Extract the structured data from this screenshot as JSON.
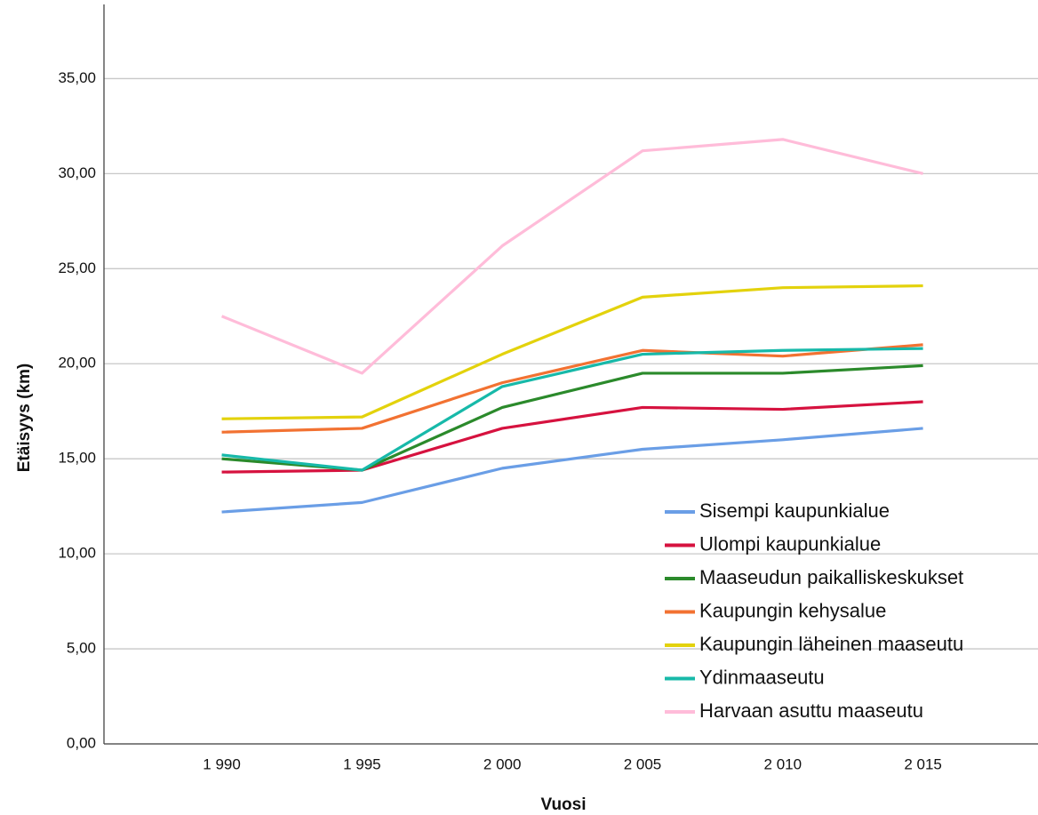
{
  "chart_data": {
    "type": "line",
    "x_label": "Vuosi",
    "y_label": "Etäisyys (km)",
    "x": [
      1990,
      1995,
      2000,
      2005,
      2010,
      2015
    ],
    "xlim": [
      1985.8,
      2019.1
    ],
    "xticks": [
      {
        "value": 1990,
        "label": "1 990"
      },
      {
        "value": 1995,
        "label": "1 995"
      },
      {
        "value": 2000,
        "label": "2 000"
      },
      {
        "value": 2005,
        "label": "2 005"
      },
      {
        "value": 2010,
        "label": "2 010"
      },
      {
        "value": 2015,
        "label": "2 015"
      }
    ],
    "ylim": [
      0,
      38.9
    ],
    "yticks": [
      {
        "value": 0,
        "label": "0,00"
      },
      {
        "value": 5,
        "label": "5,00"
      },
      {
        "value": 10,
        "label": "10,00"
      },
      {
        "value": 15,
        "label": "15,00"
      },
      {
        "value": 20,
        "label": "20,00"
      },
      {
        "value": 25,
        "label": "25,00"
      },
      {
        "value": 30,
        "label": "30,00"
      },
      {
        "value": 35,
        "label": "35,00"
      }
    ],
    "grid": true,
    "legend": "lower right",
    "series": [
      {
        "name": "Sisempi kaupunkialue",
        "color": "#6a9ee6",
        "values": [
          12.2,
          12.7,
          14.5,
          15.5,
          16.0,
          16.6
        ]
      },
      {
        "name": "Ulompi kaupunkialue",
        "color": "#d6123f",
        "values": [
          14.3,
          14.4,
          16.6,
          17.7,
          17.6,
          18.0
        ]
      },
      {
        "name": "Maaseudun paikalliskeskukset",
        "color": "#2b8a2b",
        "values": [
          15.0,
          14.4,
          17.7,
          19.5,
          19.5,
          19.9
        ]
      },
      {
        "name": "Kaupungin kehysalue",
        "color": "#f27232",
        "values": [
          16.4,
          16.6,
          19.0,
          20.7,
          20.4,
          21.0
        ]
      },
      {
        "name": "Kaupungin läheinen maaseutu",
        "color": "#e3d20c",
        "values": [
          17.1,
          17.2,
          20.5,
          23.5,
          24.0,
          24.1
        ]
      },
      {
        "name": "Ydinmaaseutu",
        "color": "#17b9a9",
        "values": [
          15.2,
          14.4,
          18.8,
          20.5,
          20.7,
          20.8
        ]
      },
      {
        "name": "Harvaan asuttu maaseutu",
        "color": "#ffbcd9",
        "values": [
          22.5,
          19.5,
          26.2,
          31.2,
          31.8,
          30.0
        ]
      }
    ]
  }
}
